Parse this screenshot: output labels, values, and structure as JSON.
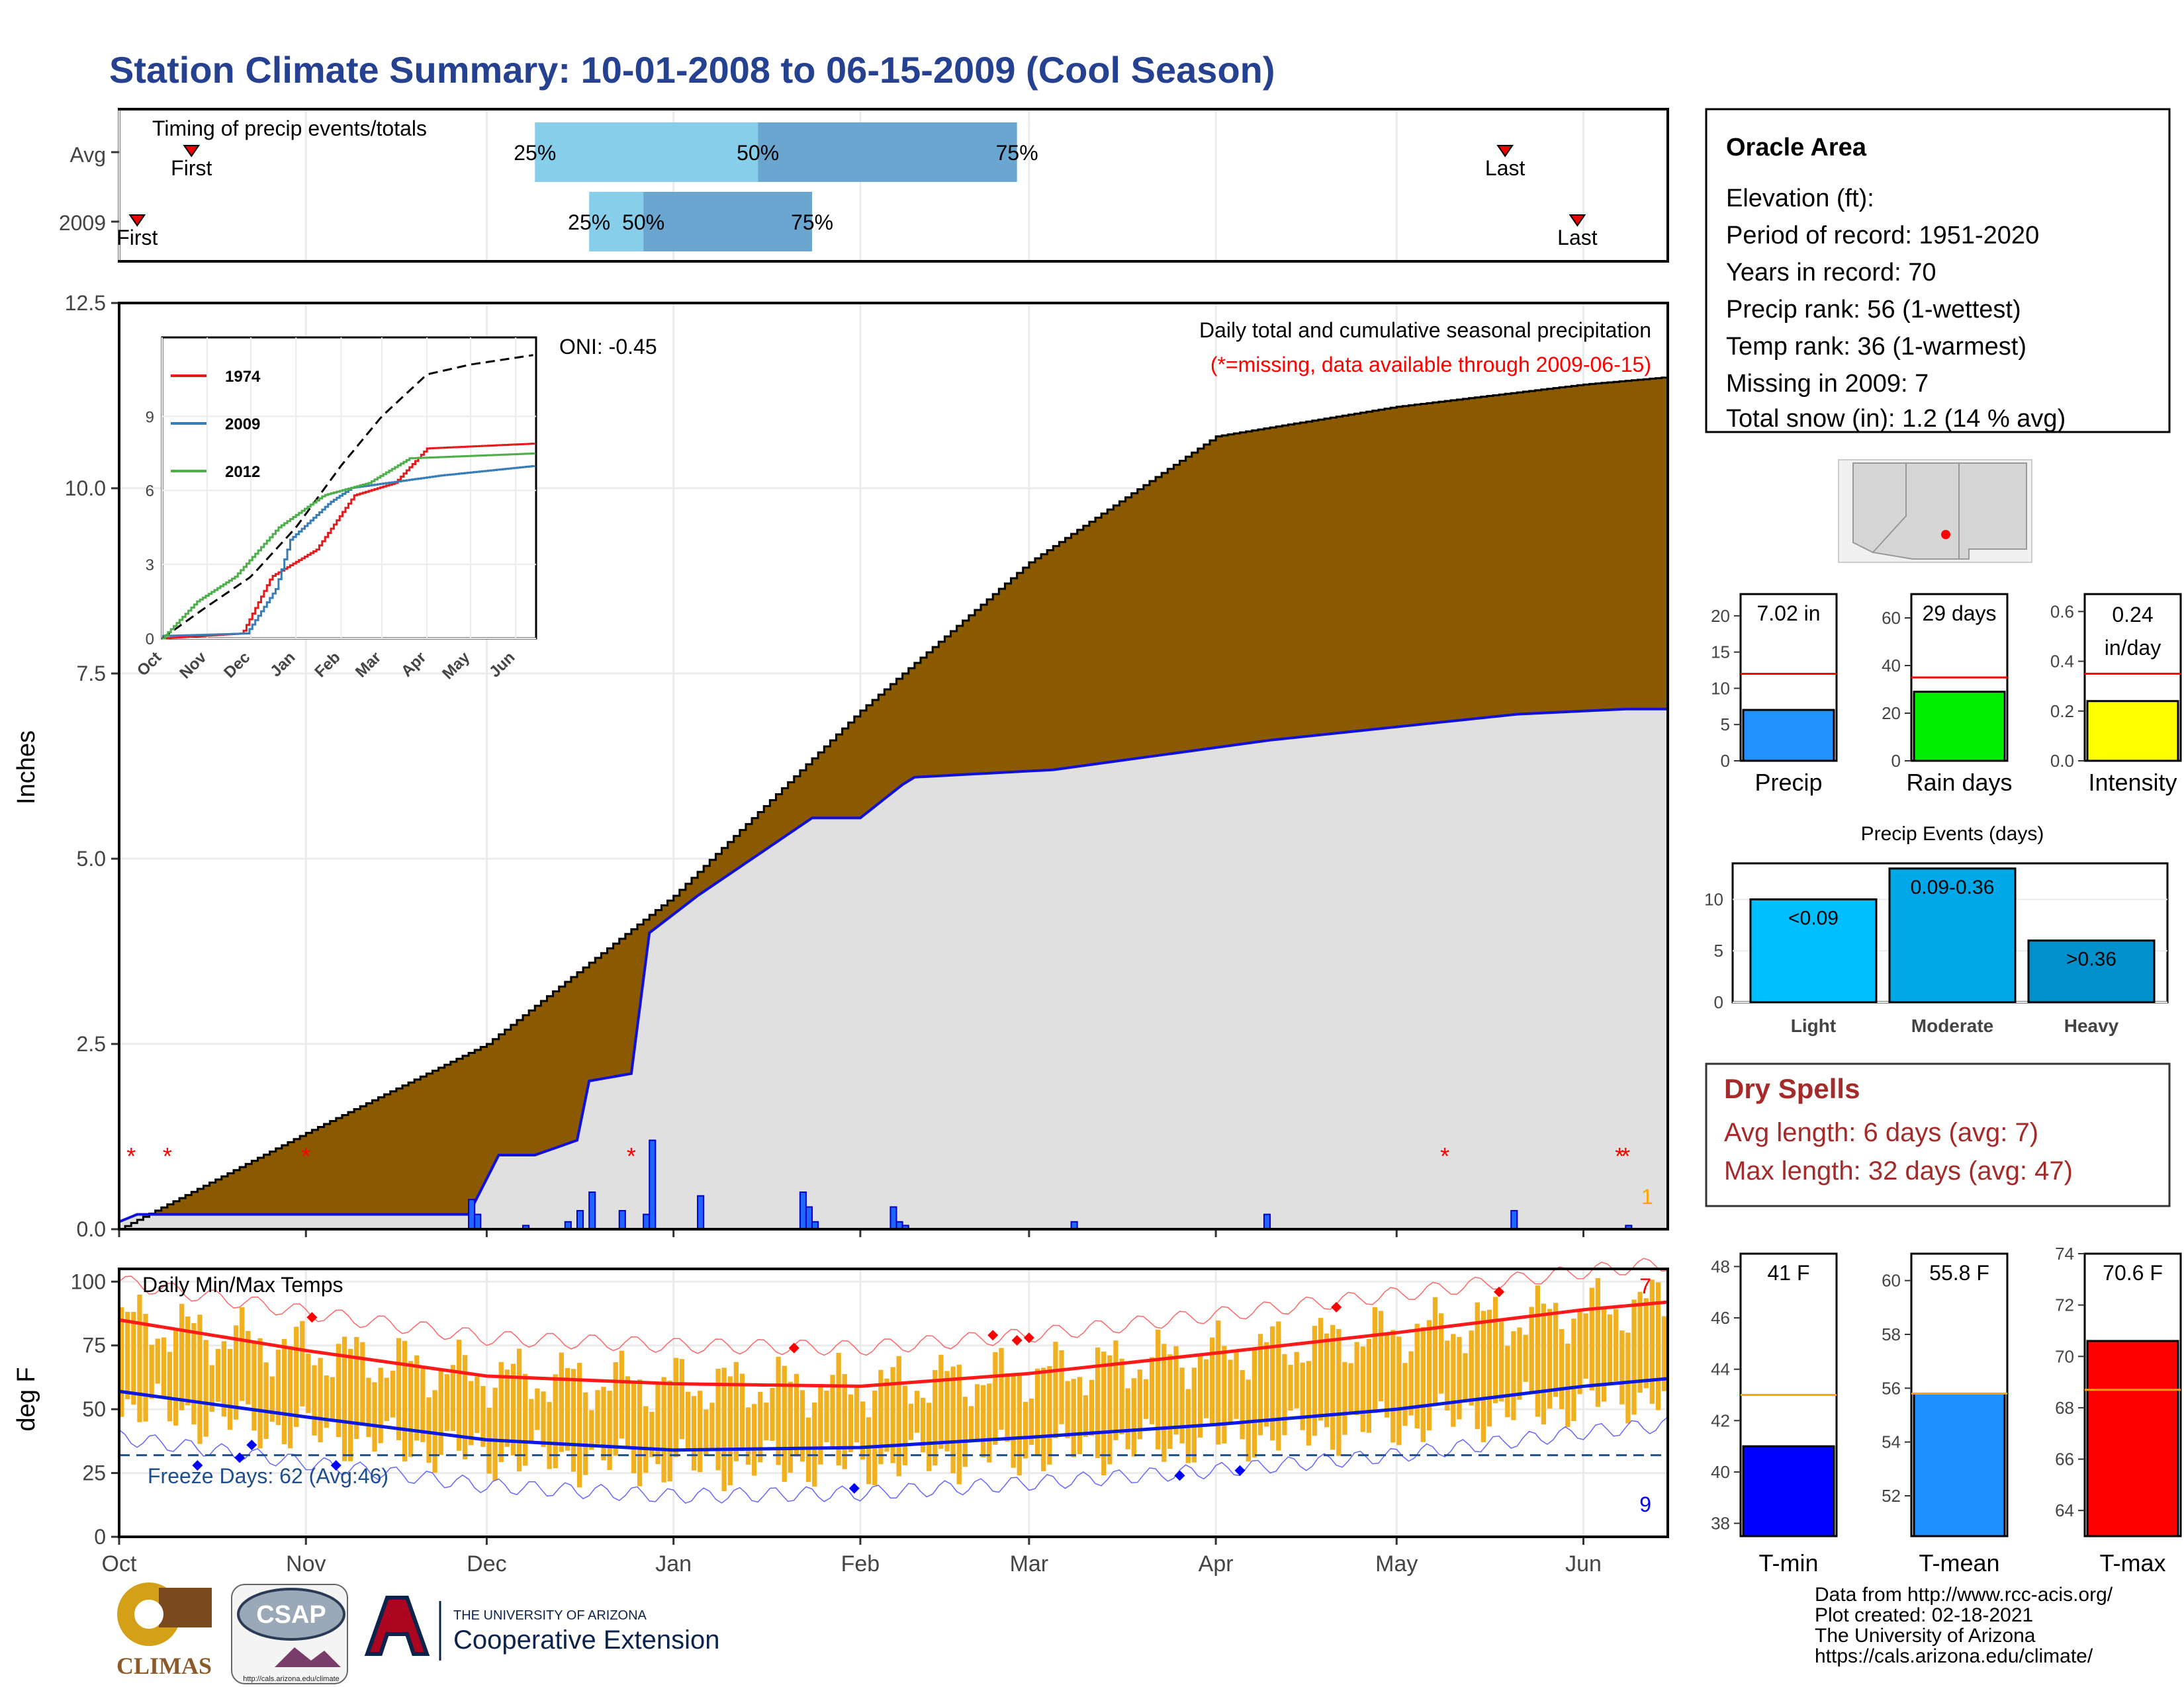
{
  "title": "Station Climate Summary: 10-01-2008 to 06-15-2009 (Cool Season)",
  "colors": {
    "title": "#26418f",
    "precip_fill": "#8b5a00",
    "current_area": "#e0e0e0",
    "current_line": "#1010dd",
    "missing": "#ff0000",
    "bar_orange": "#f0b020",
    "tmax_avg": "#ff1a1a",
    "tmin_avg": "#0a1adf",
    "q_light": "#87ceeb",
    "q_dark": "#6aa6cf",
    "red_avg_line": "#ff0000"
  },
  "timing": {
    "label": "Timing of precip events/totals",
    "rows": [
      "Avg",
      "2009"
    ],
    "first_label": "First",
    "last_label": "Last",
    "avg": {
      "first": "2008-10-13",
      "q25": "2008-12-09",
      "q50": "2009-01-15",
      "q75": "2009-02-27",
      "last": "2009-05-19"
    },
    "y2009": {
      "first": "2008-10-04",
      "q25": "2008-12-18",
      "q50": "2008-12-27",
      "q75": "2009-01-24",
      "last": "2009-05-31"
    },
    "pct": [
      "25%",
      "50%",
      "75%"
    ]
  },
  "chart_data": [
    {
      "type": "area",
      "ylabel": "Inches",
      "ylim": [
        0,
        12.5
      ],
      "yticks": [
        "0.0",
        "2.5",
        "5.0",
        "7.5",
        "10.0",
        "12.5"
      ],
      "x_ticks": [
        "Oct",
        "Nov",
        "Dec",
        "Jan",
        "Feb",
        "Mar",
        "Apr",
        "May",
        "Jun"
      ],
      "annotation": "Daily total and cumulative seasonal precipitation",
      "missing_note": "(*=missing, data available through 2009-06-15)",
      "oni": "ONI: -0.45",
      "count_label": "1",
      "avg_cumulative": {
        "x": [
          "2008-10-01",
          "2008-11-01",
          "2008-12-01",
          "2009-01-01",
          "2009-02-01",
          "2009-03-01",
          "2009-04-01",
          "2009-05-01",
          "2009-06-01",
          "2009-06-15"
        ],
        "y": [
          0,
          1.3,
          2.5,
          4.5,
          7.0,
          9.0,
          10.7,
          11.1,
          11.4,
          11.5
        ]
      },
      "current_cumulative": {
        "x": [
          "2008-10-01",
          "2008-10-04",
          "2008-11-28",
          "2008-12-03",
          "2008-12-09",
          "2008-12-16",
          "2008-12-18",
          "2008-12-25",
          "2008-12-28",
          "2009-01-05",
          "2009-01-24",
          "2009-02-01",
          "2009-02-08",
          "2009-02-10",
          "2009-03-05",
          "2009-04-10",
          "2009-05-21",
          "2009-06-08",
          "2009-06-15"
        ],
        "y": [
          0.1,
          0.2,
          0.2,
          1.0,
          1.0,
          1.2,
          2.0,
          2.1,
          4.0,
          4.5,
          5.55,
          5.55,
          6.0,
          6.1,
          6.2,
          6.6,
          6.95,
          7.02,
          7.02
        ]
      },
      "daily_bars": {
        "x": [
          "2008-11-28",
          "2008-11-29",
          "2008-12-07",
          "2008-12-14",
          "2008-12-16",
          "2008-12-18",
          "2008-12-23",
          "2008-12-27",
          "2008-12-28",
          "2009-01-05",
          "2009-01-22",
          "2009-01-23",
          "2009-01-24",
          "2009-02-06",
          "2009-02-07",
          "2009-02-08",
          "2009-03-08",
          "2009-04-09",
          "2009-05-20",
          "2009-06-08"
        ],
        "y": [
          0.4,
          0.2,
          0.05,
          0.1,
          0.25,
          0.5,
          0.25,
          0.2,
          1.2,
          0.45,
          0.5,
          0.3,
          0.1,
          0.3,
          0.1,
          0.05,
          0.1,
          0.2,
          0.25,
          0.05
        ]
      },
      "missing_dates": [
        "2008-10-03",
        "2008-10-09",
        "2008-11-01",
        "2008-12-25",
        "2009-05-09",
        "2009-06-07",
        "2009-06-08"
      ]
    },
    {
      "type": "line",
      "ylabel": "deg F",
      "title": "Daily Min/Max Temps",
      "ylim": [
        0,
        105
      ],
      "yticks": [
        "0",
        "25",
        "50",
        "75",
        "100"
      ],
      "x_ticks": [
        "Oct",
        "Nov",
        "Dec",
        "Jan",
        "Feb",
        "Mar",
        "Apr",
        "May",
        "Jun"
      ],
      "freeze_label": "Freeze Days: 62 (Avg:46)",
      "freeze_line": 32,
      "count_top": "7",
      "count_bottom": "9",
      "tmax_avg": {
        "x": [
          "2008-10-01",
          "2008-11-01",
          "2008-12-01",
          "2009-01-01",
          "2009-02-01",
          "2009-03-01",
          "2009-04-01",
          "2009-05-01",
          "2009-06-01",
          "2009-06-15"
        ],
        "y": [
          85,
          73,
          63,
          60,
          59,
          64,
          72,
          80,
          89,
          92
        ]
      },
      "tmin_avg": {
        "x": [
          "2008-10-01",
          "2008-11-01",
          "2008-12-01",
          "2009-01-01",
          "2009-02-01",
          "2009-03-01",
          "2009-04-01",
          "2009-05-01",
          "2009-06-01",
          "2009-06-15"
        ],
        "y": [
          57,
          47,
          38,
          34,
          35,
          39,
          44,
          50,
          59,
          62
        ]
      },
      "record_high_x": [
        "2008-11-02",
        "2009-01-21",
        "2009-02-23",
        "2009-02-27",
        "2009-03-01",
        "2009-04-21",
        "2009-05-18"
      ],
      "record_high_y": [
        86,
        74,
        79,
        77,
        78,
        90,
        96
      ],
      "record_low_x": [
        "2008-10-14",
        "2008-10-21",
        "2008-10-23",
        "2008-11-06",
        "2009-01-31",
        "2009-03-26",
        "2009-04-05"
      ],
      "record_low_y": [
        28,
        31,
        36,
        28,
        19,
        24,
        26
      ]
    },
    {
      "type": "bar",
      "panel": "precip-total",
      "categories": [
        "Precip"
      ],
      "values": [
        7.02
      ],
      "avg": 12,
      "ylim": [
        0,
        23
      ],
      "yticks": [
        "0",
        "5",
        "10",
        "15",
        "20"
      ],
      "value_label": "7.02 in",
      "color": "#2291ff"
    },
    {
      "type": "bar",
      "panel": "rain-days",
      "categories": [
        "Rain days"
      ],
      "values": [
        29
      ],
      "avg": 35,
      "ylim": [
        0,
        70
      ],
      "yticks": [
        "0",
        "20",
        "40",
        "60"
      ],
      "value_label": "29 days",
      "color": "#00ee00"
    },
    {
      "type": "bar",
      "panel": "intensity",
      "categories": [
        "Intensity"
      ],
      "values": [
        0.24
      ],
      "avg": 0.35,
      "ylim": [
        0,
        0.67
      ],
      "yticks": [
        "0.0",
        "0.2",
        "0.4",
        "0.6"
      ],
      "value_label_1": "0.24",
      "value_label_2": "in/day",
      "color": "#ffff00"
    },
    {
      "type": "bar",
      "panel": "precip-events",
      "title": "Precip Events (days)",
      "categories": [
        "Light",
        "Moderate",
        "Heavy"
      ],
      "values": [
        10,
        13,
        6
      ],
      "labels": [
        "<0.09",
        "0.09-0.36",
        ">0.36"
      ],
      "ylim": [
        0,
        13.5
      ],
      "yticks": [
        "0",
        "5",
        "10"
      ],
      "colors": [
        "#00bfff",
        "#00a8e8",
        "#0090cc"
      ]
    },
    {
      "type": "bar",
      "panel": "t-min",
      "categories": [
        "T-min"
      ],
      "values": [
        41
      ],
      "avg": 43,
      "ylim": [
        37.5,
        48.5
      ],
      "yticks": [
        "38",
        "40",
        "42",
        "44",
        "46",
        "48"
      ],
      "value_label": "41 F",
      "color": "#0000ff"
    },
    {
      "type": "bar",
      "panel": "t-mean",
      "categories": [
        "T-mean"
      ],
      "values": [
        55.8
      ],
      "avg": 55.8,
      "ylim": [
        50.5,
        61
      ],
      "yticks": [
        "52",
        "54",
        "56",
        "58",
        "60"
      ],
      "value_label": "55.8 F",
      "color": "#1e90ff"
    },
    {
      "type": "bar",
      "panel": "t-max",
      "categories": [
        "T-max"
      ],
      "values": [
        70.6
      ],
      "avg": 68.7,
      "ylim": [
        63,
        74
      ],
      "yticks": [
        "64",
        "66",
        "68",
        "70",
        "72",
        "74"
      ],
      "value_label": "70.6 F",
      "color": "#ff0000"
    }
  ],
  "station": {
    "name": "Oracle Area",
    "lines": [
      "Elevation (ft):",
      "Period of record: 1951-2020",
      "Years in record: 70",
      "Precip rank: 56 (1-wettest)",
      "Temp rank: 36 (1-warmest)",
      "Missing in 2009: 7",
      "Total snow (in): 1.2 (14 % avg)"
    ]
  },
  "dry_spells": {
    "title": "Dry Spells",
    "avg": "Avg length: 6 days (avg: 7)",
    "max": "Max length: 32 days (avg: 47)"
  },
  "inset": {
    "series": [
      {
        "name": "1974",
        "color": "#e41a1c",
        "x": [
          "2008-10-01",
          "2008-11-25",
          "2008-12-15",
          "2009-01-15",
          "2009-02-10",
          "2009-03-10",
          "2009-04-01",
          "2009-06-15"
        ],
        "y": [
          0,
          0.2,
          2.5,
          3.6,
          5.8,
          6.3,
          7.7,
          7.9
        ]
      },
      {
        "name": "2009",
        "color": "#377eb8",
        "x": [
          "2008-10-01",
          "2008-11-28",
          "2008-12-18",
          "2008-12-28",
          "2009-01-24",
          "2009-02-08",
          "2009-04-10",
          "2009-06-15"
        ],
        "y": [
          0.1,
          0.2,
          2.0,
          4.0,
          5.5,
          6.1,
          6.6,
          7.0
        ]
      },
      {
        "name": "2012",
        "color": "#4daf4a",
        "x": [
          "2008-10-01",
          "2008-10-25",
          "2008-11-20",
          "2008-12-20",
          "2009-01-20",
          "2009-02-20",
          "2009-03-20",
          "2009-06-15"
        ],
        "y": [
          0,
          1.5,
          2.5,
          4.5,
          5.8,
          6.3,
          7.3,
          7.5
        ]
      }
    ],
    "avg": {
      "x": [
        "2008-10-01",
        "2008-11-01",
        "2008-12-01",
        "2009-01-01",
        "2009-02-01",
        "2009-03-01",
        "2009-04-01",
        "2009-05-01",
        "2009-06-15"
      ],
      "y": [
        0,
        1.3,
        2.5,
        4.5,
        7.0,
        9.0,
        10.7,
        11.1,
        11.5
      ]
    },
    "yticks": [
      "0",
      "3",
      "6",
      "9"
    ],
    "xticks": [
      "Oct",
      "Nov",
      "Dec",
      "Jan",
      "Feb",
      "Mar",
      "Apr",
      "May",
      "Jun"
    ]
  },
  "footer": {
    "credit_lines": [
      "Data from http://www.rcc-acis.org/",
      "Plot created: 02-18-2021",
      "The University of Arizona",
      "https://cals.arizona.edu/climate/"
    ],
    "climas": "CLIMAS",
    "csap": "CSAP",
    "csap_url": "http://cals.arizona.edu/climate",
    "ua_small": "THE UNIVERSITY OF ARIZONA",
    "ua_large": "Cooperative Extension"
  }
}
